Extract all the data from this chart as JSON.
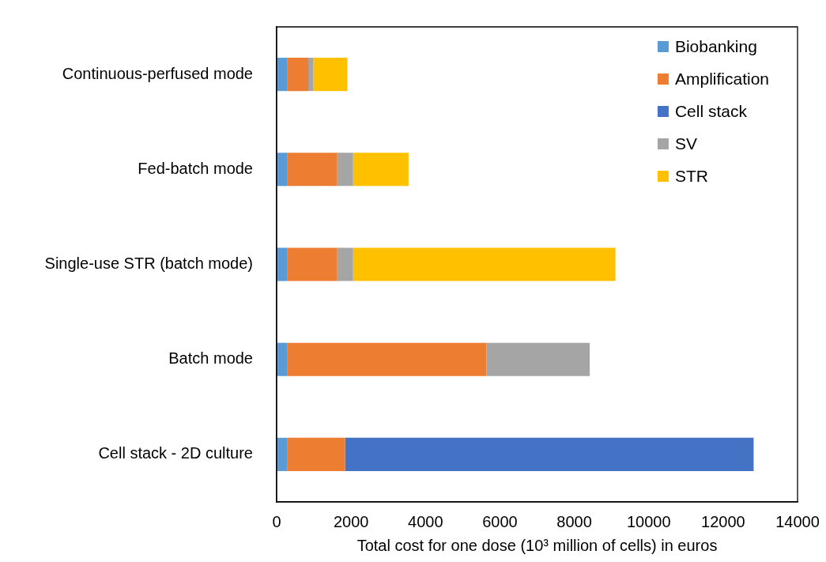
{
  "chart_data": {
    "type": "bar",
    "orientation": "horizontal",
    "stacked": true,
    "xlabel": "Total cost for one dose (10³ million of cells) in euros",
    "categories": [
      "Continuous-perfused mode",
      "Fed-batch mode",
      "Single-use STR (batch mode)",
      "Batch mode",
      "Cell stack - 2D culture"
    ],
    "series": [
      {
        "name": "Biobanking",
        "color": "#5b9bd5",
        "values": [
          280,
          280,
          280,
          280,
          280
        ]
      },
      {
        "name": "Amplification",
        "color": "#ed7d31",
        "values": [
          570,
          1350,
          1350,
          5360,
          1560
        ]
      },
      {
        "name": "Cell stack",
        "color": "#4472c4",
        "values": [
          null,
          null,
          null,
          null,
          10980
        ]
      },
      {
        "name": "SV",
        "color": "#a5a5a5",
        "values": [
          135,
          425,
          425,
          2775,
          null
        ]
      },
      {
        "name": "STR",
        "color": "#ffc000",
        "values": [
          915,
          1490,
          7050,
          null,
          null
        ]
      }
    ],
    "xlim": [
      0,
      14000
    ],
    "xticks": [
      0,
      2000,
      4000,
      6000,
      8000,
      10000,
      12000,
      14000
    ],
    "grid": false,
    "legend": "top right"
  }
}
